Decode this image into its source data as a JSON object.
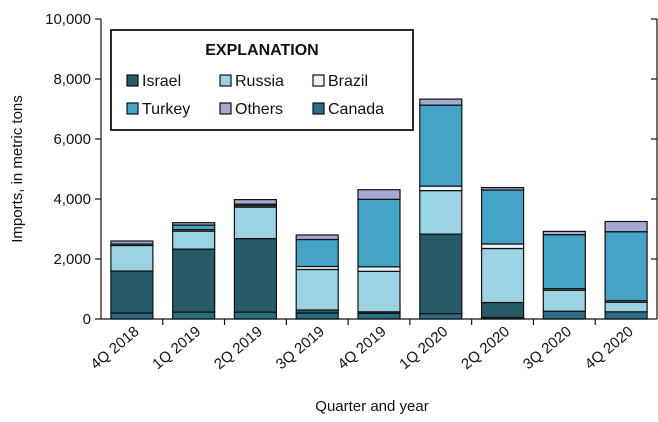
{
  "chart_data": {
    "type": "bar",
    "stacked": true,
    "xlabel": "Quarter and year",
    "ylabel": "Imports, in metric tons",
    "ylim": [
      0,
      10000
    ],
    "yticks": [
      0,
      2000,
      4000,
      6000,
      8000,
      10000
    ],
    "ytick_labels": [
      "0",
      "2,000",
      "4,000",
      "6,000",
      "8,000",
      "10,000"
    ],
    "grid": false,
    "categories": [
      "4Q 2018",
      "1Q 2019",
      "2Q 2019",
      "3Q 2019",
      "4Q 2019",
      "1Q 2020",
      "2Q 2020",
      "3Q 2020",
      "4Q 2020"
    ],
    "legend": {
      "title": "EXPLANATION",
      "placement": "top-left"
    },
    "series": [
      {
        "name": "Canada",
        "color": "#2a6e86",
        "values": [
          200,
          230,
          230,
          200,
          190,
          180,
          50,
          260,
          240
        ]
      },
      {
        "name": "Israel",
        "color": "#265c68",
        "values": [
          1400,
          2100,
          2450,
          100,
          50,
          2650,
          500,
          0,
          0
        ]
      },
      {
        "name": "Russia",
        "color": "#9bd3e3",
        "values": [
          850,
          600,
          1050,
          1350,
          1350,
          1450,
          1800,
          700,
          320
        ]
      },
      {
        "name": "Brazil",
        "color": "#e9f4f8",
        "values": [
          0,
          50,
          50,
          100,
          150,
          150,
          150,
          50,
          50
        ]
      },
      {
        "name": "Turkey",
        "color": "#43a4c5",
        "values": [
          50,
          150,
          50,
          900,
          2250,
          2700,
          1800,
          1800,
          2300
        ]
      },
      {
        "name": "Others",
        "color": "#a4aad3",
        "values": [
          100,
          80,
          150,
          150,
          320,
          200,
          80,
          110,
          340
        ]
      }
    ],
    "legend_order": [
      "Israel",
      "Russia",
      "Brazil",
      "Turkey",
      "Others",
      "Canada"
    ]
  }
}
